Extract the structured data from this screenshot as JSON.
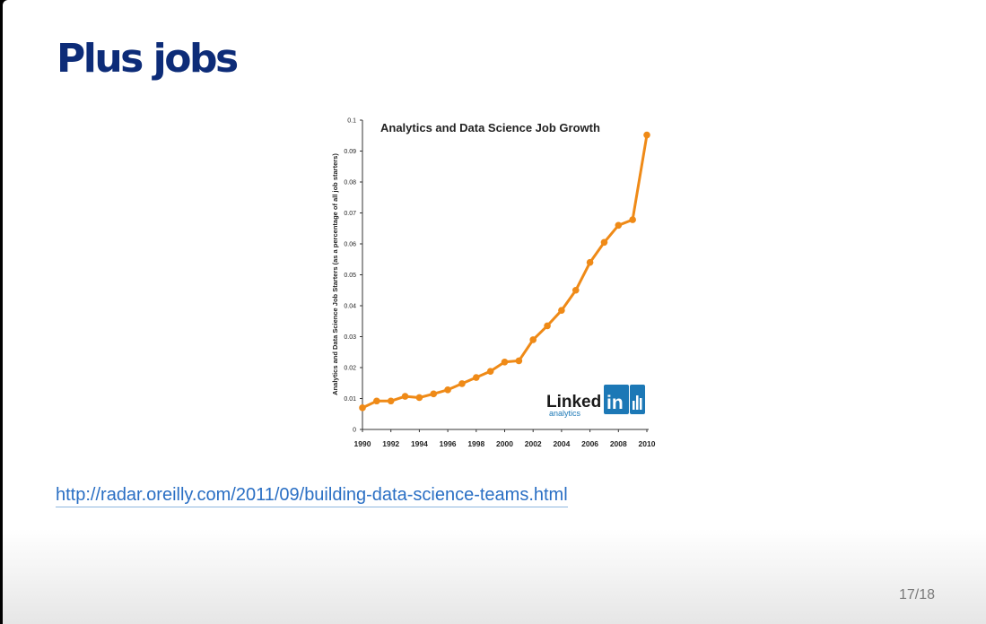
{
  "slide": {
    "title": "Plus jobs",
    "link_text": "http://radar.oreilly.com/2011/09/building-data-science-teams.html",
    "page_number": "17/18"
  },
  "colors": {
    "title": "#0d2c78",
    "link": "#2a6fc4",
    "series": "#ef8a17",
    "linkedin_blue": "#1c78b6"
  },
  "logo": {
    "wordmark": "Linked",
    "in_mark": "in",
    "sub": "analytics"
  },
  "chart_data": {
    "type": "line",
    "title": "Analytics and Data Science Job Growth",
    "xlabel": "",
    "ylabel": "Analytics and Data Science Job Starters (as a percentage of all job starters)",
    "xlim": [
      1990,
      2010
    ],
    "ylim": [
      0,
      0.1
    ],
    "y_ticks": [
      "0",
      "0.01",
      "0.02",
      "0.03",
      "0.04",
      "0.05",
      "0.06",
      "0.07",
      "0.08",
      "0.09",
      "0.1"
    ],
    "x_ticks": [
      "1990",
      "1992",
      "1994",
      "1996",
      "1998",
      "2000",
      "2002",
      "2004",
      "2006",
      "2008",
      "2010"
    ],
    "grid": false,
    "series": [
      {
        "x": [
          1990,
          1991,
          1992,
          1993,
          1994,
          1995,
          1996,
          1997,
          1998,
          1999,
          2000,
          2001,
          2002,
          2003,
          2004,
          2005,
          2006,
          2007,
          2008,
          2009,
          2010
        ],
        "values": [
          0.007,
          0.0092,
          0.0092,
          0.0107,
          0.0103,
          0.0115,
          0.0128,
          0.0148,
          0.0168,
          0.0188,
          0.0218,
          0.0222,
          0.029,
          0.0335,
          0.0385,
          0.045,
          0.054,
          0.0605,
          0.066,
          0.0678,
          0.0952
        ]
      }
    ]
  }
}
